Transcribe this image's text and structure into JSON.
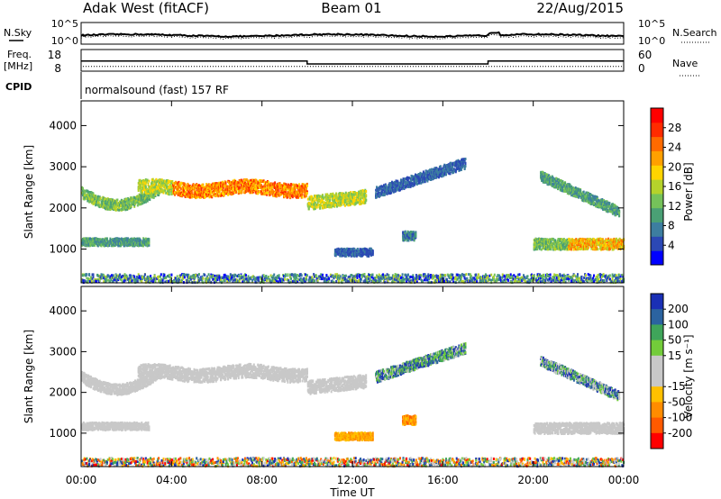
{
  "header": {
    "station": "Adak West (fitACF)",
    "beam": "Beam 01",
    "date": "22/Aug/2015",
    "cpid_label": "CPID",
    "cpid_text": "normalsound (fast) 157 RF"
  },
  "nsky_panel": {
    "left_label": "N.Sky",
    "right_label": "N.Search",
    "left_ticks": [
      "10^5",
      "10^0"
    ],
    "right_ticks": [
      "10^5",
      "10^0"
    ]
  },
  "freq_panel": {
    "left_label_1": "Freq.",
    "left_label_2": "[MHz]",
    "right_label": "Nave",
    "left_ticks": [
      "18",
      "8"
    ],
    "right_ticks": [
      "60",
      "0"
    ],
    "freq_segments": [
      {
        "start_h": 0.0,
        "end_h": 10.0,
        "freq_mhz": 12.5
      },
      {
        "start_h": 10.0,
        "end_h": 18.0,
        "freq_mhz": 10.5
      },
      {
        "start_h": 18.0,
        "end_h": 24.0,
        "freq_mhz": 12.5
      }
    ],
    "nave_value": 20
  },
  "chart_data": [
    {
      "type": "heatmap",
      "name": "Power",
      "ylabel": "Slant Range [km]",
      "ylim": [
        180,
        4600
      ],
      "xlim": [
        0,
        24
      ],
      "y_ticks": [
        1000,
        2000,
        3000,
        4000
      ],
      "y_tick_labels": [
        "1000",
        "2000",
        "3000",
        "4000"
      ],
      "colorbar": {
        "label": "Power [dB]",
        "range": [
          0,
          32
        ],
        "ticks": [
          "4",
          "8",
          "12",
          "16",
          "20",
          "24",
          "28"
        ],
        "tick_values": [
          4,
          8,
          12,
          16,
          20,
          24,
          28
        ],
        "colors": [
          "#0000ff",
          "#2b48b5",
          "#3d7ea0",
          "#4aa075",
          "#75c25a",
          "#b5d22b",
          "#ffd400",
          "#ffa000",
          "#ff6a00",
          "#ff2b00",
          "#ff0000"
        ]
      }
    },
    {
      "type": "heatmap",
      "name": "Velocity",
      "ylabel": "Slant Range [km]",
      "ylim": [
        180,
        4600
      ],
      "xlim": [
        0,
        24
      ],
      "y_ticks": [
        1000,
        2000,
        3000,
        4000
      ],
      "y_tick_labels": [
        "1000",
        "2000",
        "3000",
        "4000"
      ],
      "colorbar": {
        "label": "Velocity [m s⁻¹]",
        "ticks": [
          "200",
          "100",
          "50",
          "15",
          "-15",
          "-50",
          "-100",
          "-200"
        ],
        "colors": [
          "#1a2fb5",
          "#2b63a0",
          "#3fa55a",
          "#73cc3a",
          "#c8c8c8",
          "#c8c8c8",
          "#ffc000",
          "#ff8c00",
          "#ff5a00",
          "#ff0000"
        ]
      }
    }
  ],
  "x_axis": {
    "label": "Time UT",
    "ticks": [
      "00:00",
      "04:00",
      "08:00",
      "12:00",
      "16:00",
      "20:00",
      "00:00"
    ],
    "tick_hours": [
      0,
      4,
      8,
      12,
      16,
      20,
      24
    ]
  }
}
